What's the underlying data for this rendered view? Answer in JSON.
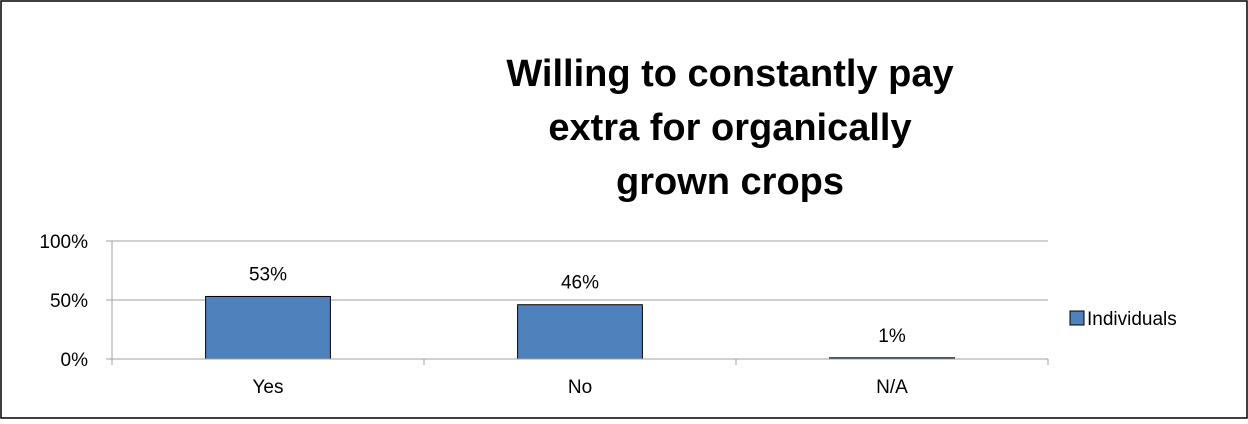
{
  "chart_data": {
    "type": "bar",
    "title_lines": [
      "Willing to constantly pay",
      "extra for organically",
      "grown crops"
    ],
    "categories": [
      "Yes",
      "No",
      "N/A"
    ],
    "series": [
      {
        "name": "Individuals",
        "values": [
          53,
          46,
          1
        ],
        "labels": [
          "53%",
          "46%",
          "1%"
        ],
        "color": "#4f81bd"
      }
    ],
    "ylim": [
      0,
      100
    ],
    "yticks": [
      0,
      50,
      100
    ],
    "ytick_labels": [
      "0%",
      "50%",
      "100%"
    ],
    "grid": true,
    "legend_position": "right",
    "colors": {
      "bar_border": "#000000",
      "grid": "#a0a0a0",
      "frame": "#000000"
    }
  }
}
